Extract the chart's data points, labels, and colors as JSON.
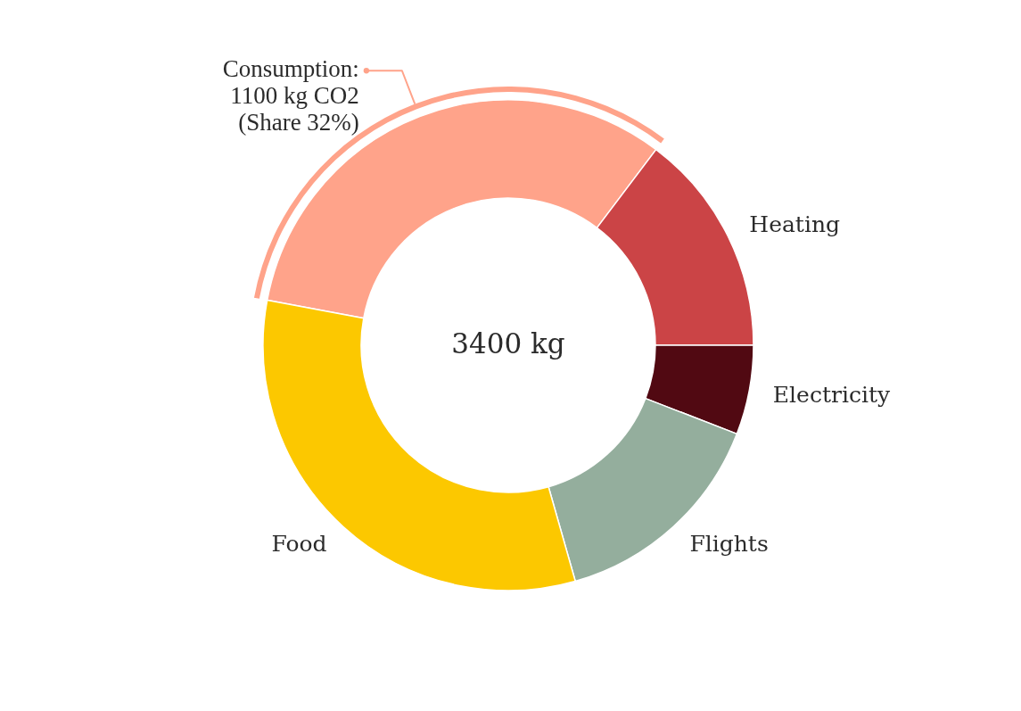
{
  "chart_data": {
    "type": "donut",
    "categories": [
      null,
      "Heating",
      "Electricity",
      "Flights",
      "Food"
    ],
    "values": [
      1100,
      500,
      200,
      500,
      1100
    ],
    "colors": [
      "#ffa38a",
      "#cb4446",
      "#510912",
      "#94ae9d",
      "#fcc800"
    ],
    "value_labels": [
      "Consumption: 1100 kg CO2 (Share 32%)",
      null,
      null,
      null,
      null
    ],
    "annotations": [
      "3400 kg"
    ]
  }
}
